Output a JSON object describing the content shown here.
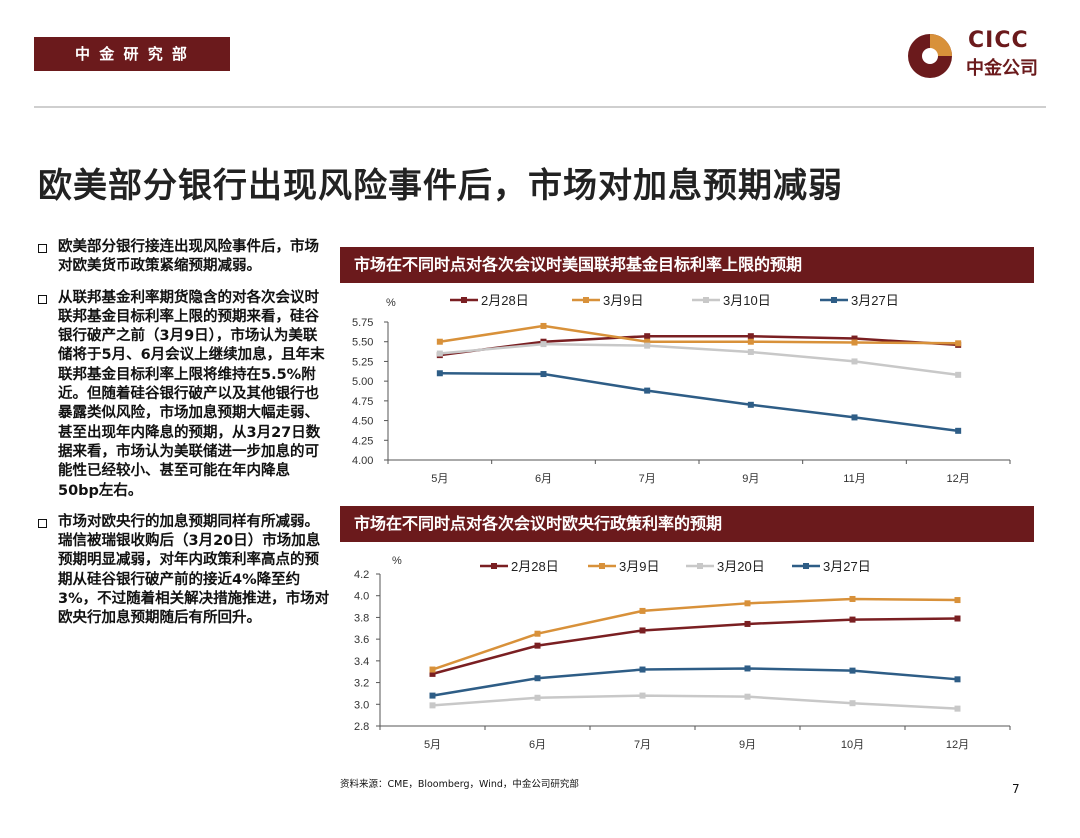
{
  "header": {
    "department": "中 金 研 究 部",
    "logo_en": "CICC",
    "logo_cn": "中金公司"
  },
  "page_title": "欧美部分银行出现风险事件后，市场对加息预期减弱",
  "bullets": [
    "欧美部分银行接连出现风险事件后，市场对欧美货币政策紧缩预期减弱。",
    "从联邦基金利率期货隐含的对各次会议时联邦基金目标利率上限的预期来看，硅谷银行破产之前（3月9日），市场认为美联储将于5月、6月会议上继续加息，且年末联邦基金目标利率上限将维持在5.5%附近。但随着硅谷银行破产以及其他银行也暴露类似风险，市场加息预期大幅走弱、甚至出现年内降息的预期，从3月27日数据来看，市场认为美联储进一步加息的可能性已经较小、甚至可能在年内降息50bp左右。",
    "市场对欧央行的加息预期同样有所减弱。瑞信被瑞银收购后（3月20日）市场加息预期明显减弱，对年内政策利率高点的预期从硅谷银行破产前的接近4%降至约3%，不过随着相关解决措施推进，市场对欧央行加息预期随后有所回升。"
  ],
  "footer": {
    "source": "资料来源：CME，Bloomberg，Wind，中金公司研究部",
    "page_number": "7"
  },
  "colors": {
    "brand": "#6b1a1c",
    "s1": "#7a1f22",
    "s2": "#d8913a",
    "s3": "#c8c8c8",
    "s4": "#2e5d86"
  },
  "chart_data": [
    {
      "type": "line",
      "title": "市场在不同时点对各次会议时美国联邦基金目标利率上限的预期",
      "ylabel": "%",
      "categories": [
        "5月",
        "6月",
        "7月",
        "9月",
        "11月",
        "12月"
      ],
      "ylim": [
        4.0,
        5.75
      ],
      "yticks": [
        "5.75",
        "5.50",
        "5.25",
        "5.00",
        "4.75",
        "4.50",
        "4.25",
        "4.00"
      ],
      "ytick_values": [
        5.75,
        5.5,
        5.25,
        5.0,
        4.75,
        4.5,
        4.25,
        4.0
      ],
      "legend_position": "top",
      "series": [
        {
          "name": "2月28日",
          "values": [
            5.33,
            5.5,
            5.57,
            5.57,
            5.54,
            5.46
          ]
        },
        {
          "name": "3月9日",
          "values": [
            5.5,
            5.7,
            5.5,
            5.5,
            5.49,
            5.48
          ]
        },
        {
          "name": "3月10日",
          "values": [
            5.35,
            5.47,
            5.45,
            5.37,
            5.25,
            5.08
          ]
        },
        {
          "name": "3月27日",
          "values": [
            5.1,
            5.09,
            4.88,
            4.7,
            4.54,
            4.37
          ]
        }
      ]
    },
    {
      "type": "line",
      "title": "市场在不同时点对各次会议时欧央行政策利率的预期",
      "ylabel": "%",
      "categories": [
        "5月",
        "6月",
        "7月",
        "9月",
        "10月",
        "12月"
      ],
      "ylim": [
        2.8,
        4.2
      ],
      "yticks": [
        "4.2",
        "4.0",
        "3.8",
        "3.6",
        "3.4",
        "3.2",
        "3.0",
        "2.8"
      ],
      "ytick_values": [
        4.2,
        4.0,
        3.8,
        3.6,
        3.4,
        3.2,
        3.0,
        2.8
      ],
      "legend_position": "top",
      "series": [
        {
          "name": "2月28日",
          "values": [
            3.28,
            3.54,
            3.68,
            3.74,
            3.78,
            3.79
          ]
        },
        {
          "name": "3月9日",
          "values": [
            3.32,
            3.65,
            3.86,
            3.93,
            3.97,
            3.96
          ]
        },
        {
          "name": "3月20日",
          "values": [
            2.99,
            3.06,
            3.08,
            3.07,
            3.01,
            2.96
          ]
        },
        {
          "name": "3月27日",
          "values": [
            3.08,
            3.24,
            3.32,
            3.33,
            3.31,
            3.23
          ]
        }
      ]
    }
  ]
}
